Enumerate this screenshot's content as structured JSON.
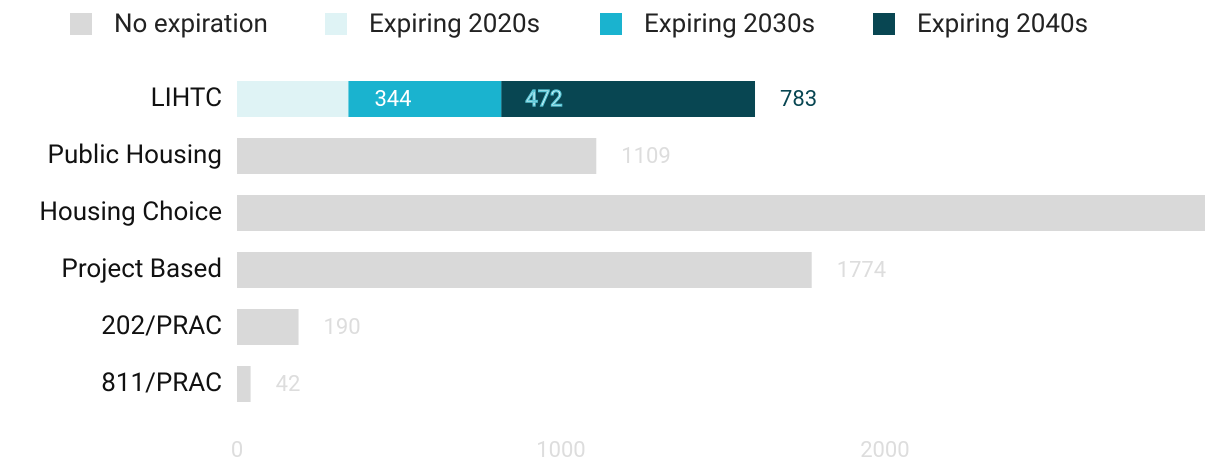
{
  "chart_data": {
    "type": "stacked-bar-horizontal",
    "categories": [
      "LIHTC",
      "Public Housing",
      "Housing Choice",
      "Project Based",
      "202/PRAC",
      "811/PRAC"
    ],
    "series": [
      {
        "name": "No expiration",
        "color": "#d9d9d9",
        "values": [
          null,
          1109,
          3000,
          1774,
          190,
          42
        ]
      },
      {
        "name": "Expiring 2020s",
        "color": "#dff3f5",
        "values": [
          344,
          null,
          null,
          null,
          null,
          null
        ]
      },
      {
        "name": "Expiring 2030s",
        "color": "#1ab3cf",
        "values": [
          472,
          null,
          null,
          null,
          null,
          null
        ]
      },
      {
        "name": "Expiring 2040s",
        "color": "#084652",
        "values": [
          783,
          null,
          null,
          null,
          null,
          null
        ]
      }
    ],
    "xlim": [
      0,
      2988
    ],
    "xticks": [
      0,
      1000,
      2000
    ]
  }
}
